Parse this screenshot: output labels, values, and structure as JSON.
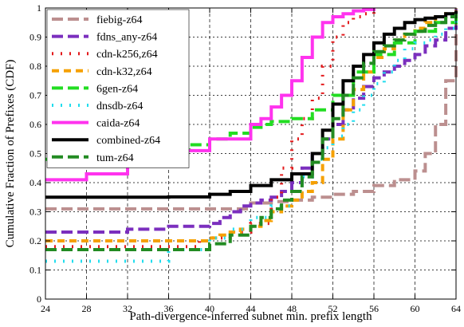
{
  "chart_data": {
    "type": "line",
    "step": true,
    "xlabel": "Path-divergence-inferred subnet min. prefix length",
    "ylabel": "Cumulative Fraction of Prefixes (CDF)",
    "xlim": [
      24,
      64
    ],
    "ylim": [
      0,
      1
    ],
    "xticks": [
      24,
      28,
      32,
      36,
      40,
      44,
      48,
      52,
      56,
      60,
      64
    ],
    "yticks": [
      0,
      0.1,
      0.2,
      0.3,
      0.4,
      0.5,
      0.6,
      0.7,
      0.8,
      0.9,
      1
    ],
    "grid": true,
    "legend_position": "top-left",
    "series": [
      {
        "name": "fiebig-z64",
        "color": "#bc8f8f",
        "dash": "14,6",
        "x": [
          24,
          44,
          46,
          48,
          50,
          52,
          54,
          56,
          58,
          60,
          61,
          62,
          63,
          64
        ],
        "y": [
          0.31,
          0.33,
          0.335,
          0.34,
          0.35,
          0.36,
          0.37,
          0.39,
          0.41,
          0.44,
          0.5,
          0.6,
          0.75,
          1.0
        ]
      },
      {
        "name": "fdns_any-z64",
        "color": "#7b2fbe",
        "dash": "14,6",
        "x": [
          24,
          32,
          36,
          40,
          41,
          42,
          43,
          44,
          45,
          46,
          47,
          48,
          49,
          50,
          51,
          52,
          53,
          54,
          55,
          56,
          57,
          58,
          59,
          60,
          61,
          62,
          63,
          64
        ],
        "y": [
          0.23,
          0.24,
          0.25,
          0.26,
          0.28,
          0.3,
          0.32,
          0.33,
          0.34,
          0.35,
          0.37,
          0.4,
          0.45,
          0.5,
          0.55,
          0.6,
          0.65,
          0.69,
          0.73,
          0.76,
          0.78,
          0.8,
          0.82,
          0.84,
          0.87,
          0.89,
          0.93,
          1.0
        ]
      },
      {
        "name": "cdn-k256,z64",
        "color": "#e31a1c",
        "dash": "2,9",
        "x": [
          24,
          39,
          40,
          42,
          44,
          46,
          47,
          48,
          49,
          50,
          51,
          52,
          53,
          54,
          55,
          56
        ],
        "y": [
          0.18,
          0.2,
          0.21,
          0.23,
          0.26,
          0.35,
          0.45,
          0.55,
          0.62,
          0.69,
          0.8,
          0.9,
          0.95,
          0.97,
          0.98,
          0.99
        ]
      },
      {
        "name": "cdn-k32,z64",
        "color": "#f5a000",
        "dash": "9,6",
        "x": [
          24,
          40,
          41,
          42,
          43,
          44,
          45,
          46,
          47,
          48,
          49,
          50,
          51,
          52,
          53,
          54,
          55,
          56,
          57,
          58,
          59,
          60,
          61,
          62,
          63,
          64
        ],
        "y": [
          0.2,
          0.21,
          0.22,
          0.23,
          0.24,
          0.25,
          0.27,
          0.3,
          0.32,
          0.34,
          0.37,
          0.4,
          0.48,
          0.55,
          0.65,
          0.72,
          0.78,
          0.83,
          0.86,
          0.89,
          0.91,
          0.93,
          0.95,
          0.97,
          0.98,
          1.0
        ]
      },
      {
        "name": "6gen-z64",
        "color": "#22dd22",
        "dash": "14,6",
        "x": [
          24,
          32,
          36,
          38,
          40,
          42,
          44,
          45,
          46,
          48,
          50,
          52,
          54,
          56,
          58,
          60,
          62,
          64
        ],
        "y": [
          0.48,
          0.5,
          0.51,
          0.53,
          0.55,
          0.57,
          0.59,
          0.6,
          0.61,
          0.62,
          0.65,
          0.7,
          0.78,
          0.84,
          0.88,
          0.92,
          0.95,
          0.98
        ]
      },
      {
        "name": "dnsdb-z64",
        "color": "#22ddee",
        "dash": "2,9",
        "x": [
          24,
          36,
          40,
          42,
          44,
          46,
          48,
          49,
          50,
          51,
          52,
          53,
          54,
          55,
          56,
          57,
          58,
          59,
          60,
          61,
          62,
          63,
          64
        ],
        "y": [
          0.13,
          0.17,
          0.21,
          0.24,
          0.28,
          0.32,
          0.37,
          0.42,
          0.48,
          0.52,
          0.56,
          0.6,
          0.65,
          0.7,
          0.74,
          0.78,
          0.82,
          0.86,
          0.88,
          0.89,
          0.91,
          0.93,
          0.96
        ]
      },
      {
        "name": "caida-z64",
        "color": "#ff33ee",
        "dash": "",
        "x": [
          24,
          28,
          32,
          36,
          40,
          44,
          45,
          46,
          47,
          48,
          49,
          50,
          51,
          52,
          53,
          54,
          55,
          56
        ],
        "y": [
          0.41,
          0.43,
          0.47,
          0.51,
          0.55,
          0.6,
          0.62,
          0.66,
          0.7,
          0.75,
          0.83,
          0.9,
          0.95,
          0.97,
          0.98,
          0.99,
          0.995,
          1.0
        ]
      },
      {
        "name": "combined-z64",
        "color": "#000000",
        "dash": "",
        "x": [
          24,
          36,
          40,
          42,
          44,
          46,
          48,
          50,
          51,
          52,
          53,
          54,
          55,
          56,
          57,
          58,
          59,
          60,
          61,
          62,
          63,
          64
        ],
        "y": [
          0.35,
          0.351,
          0.36,
          0.37,
          0.39,
          0.41,
          0.43,
          0.5,
          0.58,
          0.67,
          0.75,
          0.8,
          0.84,
          0.88,
          0.91,
          0.93,
          0.95,
          0.96,
          0.965,
          0.97,
          0.98,
          0.99
        ]
      },
      {
        "name": "tum-z64",
        "color": "#228b22",
        "dash": "14,6",
        "x": [
          24,
          40,
          42,
          44,
          45,
          46,
          47,
          48,
          49,
          50,
          51,
          52,
          53,
          54,
          55,
          56,
          57,
          58,
          59,
          60,
          61,
          62,
          63,
          64
        ],
        "y": [
          0.17,
          0.19,
          0.22,
          0.25,
          0.28,
          0.31,
          0.34,
          0.37,
          0.42,
          0.47,
          0.55,
          0.62,
          0.7,
          0.76,
          0.81,
          0.85,
          0.87,
          0.89,
          0.91,
          0.92,
          0.94,
          0.95,
          0.97,
          0.98
        ]
      }
    ]
  }
}
